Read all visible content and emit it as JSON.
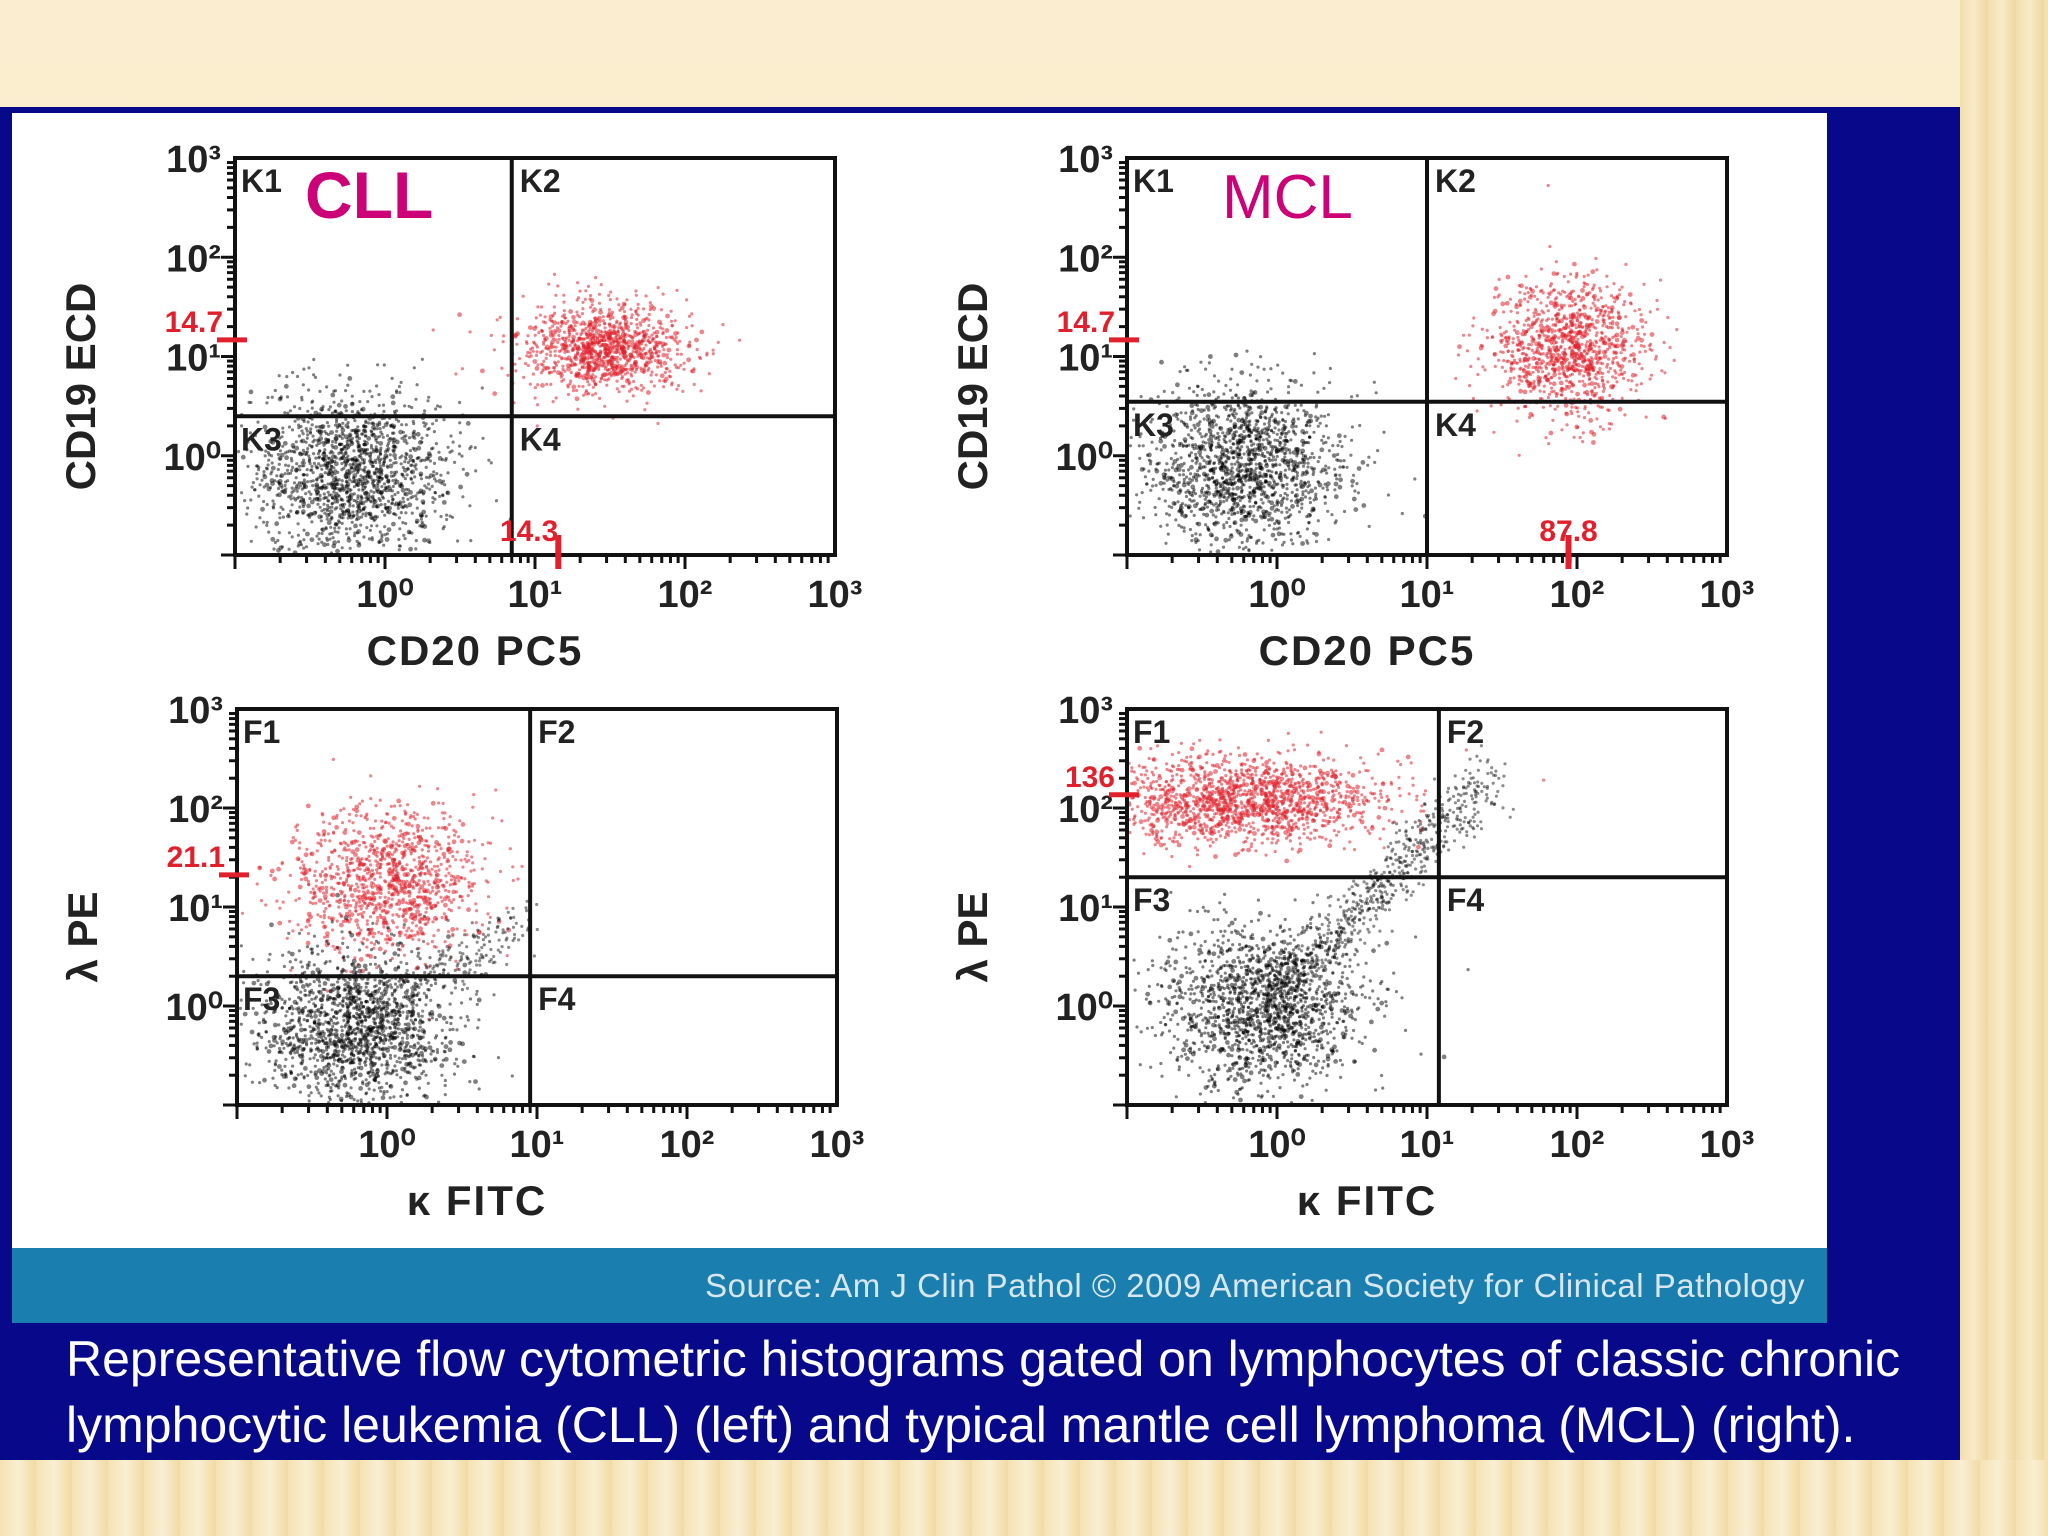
{
  "colors": {
    "panel": "#08088a",
    "source_bar": "#1a7fae",
    "red": "#e0202c",
    "black": "#000000",
    "label_magenta": "#cc0077"
  },
  "source": "Source: Am J Clin Pathol © 2009 American Society for Clinical Pathology",
  "caption": {
    "line1": "Representative flow cytometric histograms gated on lymphocytes of classic chronic",
    "line2": "lymphocytic leukemia (CLL) (left) and typical mantle cell lymphoma (MCL) (right)."
  },
  "chart_data": [
    {
      "type": "scatter",
      "title": "CLL",
      "xlabel": "CD20 PC5",
      "ylabel": "CD19 ECD",
      "axis_scale": "log",
      "xlim": [
        0.1,
        1000
      ],
      "ylim": [
        0.1,
        1000
      ],
      "xticks": [
        "10⁰",
        "10¹",
        "10²",
        "10³"
      ],
      "yticks": [
        "10⁰",
        "10¹",
        "10²",
        "10³"
      ],
      "quadrants": [
        "K1",
        "K2",
        "K3",
        "K4"
      ],
      "gate": {
        "x": 7,
        "y": 2.5
      },
      "markers": {
        "x_label": "14.3",
        "x_value": 14.3,
        "y_label": "14.7",
        "y_value": 14.7
      },
      "populations": [
        {
          "name": "red",
          "color": "#e0202c",
          "x": 28,
          "y": 12
        },
        {
          "name": "black",
          "color": "#000000",
          "x": 0.6,
          "y": 0.7
        }
      ]
    },
    {
      "type": "scatter",
      "title": "MCL",
      "xlabel": "CD20 PC5",
      "ylabel": "CD19 ECD",
      "axis_scale": "log",
      "xlim": [
        0.1,
        1000
      ],
      "ylim": [
        0.1,
        1000
      ],
      "xticks": [
        "10⁰",
        "10¹",
        "10²",
        "10³"
      ],
      "yticks": [
        "10⁰",
        "10¹",
        "10²",
        "10³"
      ],
      "quadrants": [
        "K1",
        "K2",
        "K3",
        "K4"
      ],
      "gate": {
        "x": 10,
        "y": 3.5
      },
      "markers": {
        "x_label": "87.8",
        "x_value": 87.8,
        "y_label": "14.7",
        "y_value": 14.7
      },
      "populations": [
        {
          "name": "red",
          "color": "#e0202c",
          "x": 90,
          "y": 12
        },
        {
          "name": "black",
          "color": "#000000",
          "x": 0.6,
          "y": 0.8
        }
      ]
    },
    {
      "type": "scatter",
      "title": "",
      "xlabel": "κ FITC",
      "ylabel": "λ PE",
      "axis_scale": "log",
      "xlim": [
        0.1,
        1000
      ],
      "ylim": [
        0.1,
        1000
      ],
      "xticks": [
        "10⁰",
        "10¹",
        "10²",
        "10³"
      ],
      "yticks": [
        "10⁰",
        "10¹",
        "10²",
        "10³"
      ],
      "quadrants": [
        "F1",
        "F2",
        "F3",
        "F4"
      ],
      "gate": {
        "x": 9,
        "y": 2
      },
      "markers": {
        "y_label": "21.1",
        "y_value": 21.1
      },
      "populations": [
        {
          "name": "red",
          "color": "#e0202c",
          "x": 1.0,
          "y": 18
        },
        {
          "name": "black",
          "color": "#000000",
          "x": 0.6,
          "y": 0.6
        }
      ]
    },
    {
      "type": "scatter",
      "title": "",
      "xlabel": "κ FITC",
      "ylabel": "λ PE",
      "axis_scale": "log",
      "xlim": [
        0.1,
        1000
      ],
      "ylim": [
        0.1,
        1000
      ],
      "xticks": [
        "10⁰",
        "10¹",
        "10²",
        "10³"
      ],
      "yticks": [
        "10⁰",
        "10¹",
        "10²",
        "10³"
      ],
      "quadrants": [
        "F1",
        "F2",
        "F3",
        "F4"
      ],
      "gate": {
        "x": 12,
        "y": 20
      },
      "markers": {
        "y_label": "136",
        "y_value": 136
      },
      "populations": [
        {
          "name": "red",
          "color": "#e0202c",
          "x": 0.6,
          "y": 120
        },
        {
          "name": "black",
          "color": "#000000",
          "x": 0.8,
          "y": 1.0
        }
      ]
    }
  ]
}
